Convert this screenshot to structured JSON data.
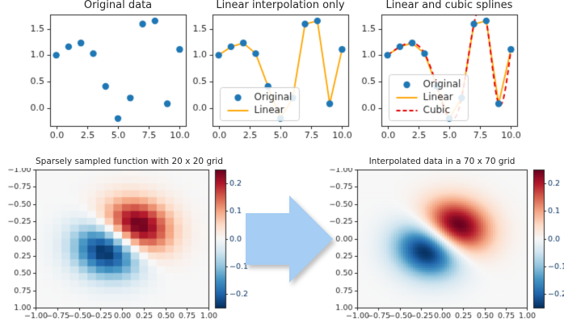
{
  "figure": {
    "background": "#ffffff"
  },
  "colors": {
    "scatter": "#1f77b4",
    "linear": "#ffa500",
    "cubic": "#e60000",
    "axis": "#262626",
    "legend_border": "#cccccc",
    "legend_bg": "rgba(255,255,255,0.85)",
    "arrow": "#a6cdf3",
    "colormap_stops": [
      "#053061",
      "#2166ac",
      "#4393c3",
      "#92c5de",
      "#d1e5f0",
      "#f7f7f7",
      "#fddbc7",
      "#f4a582",
      "#d6604d",
      "#b2182b",
      "#67001f"
    ]
  },
  "chart_data": [
    {
      "id": "original",
      "type": "scatter",
      "title": "Original data",
      "x": [
        0,
        1,
        2,
        3,
        4,
        5,
        6,
        7,
        8,
        9,
        10
      ],
      "y": [
        1.0,
        1.16,
        1.23,
        1.03,
        0.41,
        -0.2,
        0.19,
        1.59,
        1.65,
        0.08,
        1.11
      ],
      "xlim": [
        -0.5,
        10.5
      ],
      "ylim": [
        -0.34,
        1.77
      ],
      "xticks": [
        0,
        2.5,
        5,
        7.5,
        10
      ],
      "xtick_labels": [
        "0.0",
        "2.5",
        "5.0",
        "7.5",
        "10.0"
      ],
      "yticks": [
        0,
        0.5,
        1,
        1.5
      ],
      "ytick_labels": [
        "0.0",
        "0.5",
        "1.0",
        "1.5"
      ],
      "show_linear": false,
      "show_cubic": false
    },
    {
      "id": "linear-only",
      "type": "line",
      "title": "Linear interpolation only",
      "x": [
        0,
        1,
        2,
        3,
        4,
        5,
        6,
        7,
        8,
        9,
        10
      ],
      "y": [
        1.0,
        1.16,
        1.23,
        1.03,
        0.41,
        -0.2,
        0.19,
        1.59,
        1.65,
        0.08,
        1.11
      ],
      "xlim": [
        -0.5,
        10.5
      ],
      "ylim": [
        -0.34,
        1.77
      ],
      "xticks": [
        0,
        2.5,
        5,
        7.5,
        10
      ],
      "xtick_labels": [
        "0.0",
        "2.5",
        "5.0",
        "7.5",
        "10.0"
      ],
      "yticks": [
        0,
        0.5,
        1,
        1.5
      ],
      "ytick_labels": [
        "0.0",
        "0.5",
        "1.0",
        "1.5"
      ],
      "show_linear": true,
      "show_cubic": false,
      "legend": {
        "position": "lower left",
        "entries": [
          {
            "label": "Original",
            "style": "marker",
            "color": "#1f77b4"
          },
          {
            "label": "Linear",
            "style": "line",
            "color": "#ffa500"
          }
        ]
      }
    },
    {
      "id": "linear-cubic",
      "type": "line",
      "title": "Linear and cubic splines",
      "x": [
        0,
        1,
        2,
        3,
        4,
        5,
        6,
        7,
        8,
        9,
        10
      ],
      "y": [
        1.0,
        1.16,
        1.23,
        1.03,
        0.41,
        -0.2,
        0.19,
        1.59,
        1.65,
        0.08,
        1.11
      ],
      "xlim": [
        -0.5,
        10.5
      ],
      "ylim": [
        -0.34,
        1.77
      ],
      "xticks": [
        0,
        2.5,
        5,
        7.5,
        10
      ],
      "xtick_labels": [
        "0.0",
        "2.5",
        "5.0",
        "7.5",
        "10.0"
      ],
      "yticks": [
        0,
        0.5,
        1,
        1.5
      ],
      "ytick_labels": [
        "0.0",
        "0.5",
        "1.0",
        "1.5"
      ],
      "show_linear": true,
      "show_cubic": true,
      "legend": {
        "position": "lower left",
        "entries": [
          {
            "label": "Original",
            "style": "marker",
            "color": "#1f77b4"
          },
          {
            "label": "Linear",
            "style": "line",
            "color": "#ffa500"
          },
          {
            "label": "Cubic",
            "style": "dashed",
            "color": "#e60000"
          }
        ]
      }
    },
    {
      "id": "sparse-grid",
      "type": "heatmap",
      "title": "Sparsely sampled function with 20 x 20 grid",
      "grid": 20,
      "formula": "z = (x + y) * exp(-6*(x^2 + y^2))",
      "formula_js": "(x+y)*Math.exp(-6*(x*x+y*y))",
      "xlim": [
        -1,
        1
      ],
      "ylim": [
        -1,
        1
      ],
      "tick_values": [
        -1,
        -0.75,
        -0.5,
        -0.25,
        0,
        0.25,
        0.5,
        0.75,
        1
      ],
      "tick_labels": [
        "−1.00",
        "−0.75",
        "−0.50",
        "−0.25",
        "0.00",
        "0.25",
        "0.50",
        "0.75",
        "1.00"
      ],
      "vmin": -0.25,
      "vmax": 0.25,
      "colormap": "RdBu_r",
      "colorbar_tick_values": [
        0.2,
        0.1,
        0,
        -0.1,
        -0.2
      ],
      "colorbar_tick_labels": [
        "0.2",
        "0.1",
        "0.0",
        "−0.1",
        "−0.2"
      ]
    },
    {
      "id": "interp-grid",
      "type": "heatmap",
      "title": "Interpolated data in a 70 x 70 grid",
      "grid": 70,
      "formula": "z = (x + y) * exp(-6*(x^2 + y^2))",
      "formula_js": "(x+y)*Math.exp(-6*(x*x+y*y))",
      "xlim": [
        -1,
        1
      ],
      "ylim": [
        -1,
        1
      ],
      "tick_values": [
        -1,
        -0.75,
        -0.5,
        -0.25,
        0,
        0.25,
        0.5,
        0.75,
        1
      ],
      "tick_labels": [
        "−1.00",
        "−0.75",
        "−0.50",
        "−0.25",
        "0.00",
        "0.25",
        "0.50",
        "0.75",
        "1.00"
      ],
      "vmin": -0.25,
      "vmax": 0.25,
      "colormap": "RdBu_r",
      "colorbar_tick_values": [
        0.2,
        0.1,
        0,
        -0.1,
        -0.2
      ],
      "colorbar_tick_labels": [
        "0.2",
        "0.1",
        "0.0",
        "−0.1",
        "−0.2"
      ]
    }
  ],
  "arrow": {
    "direction": "right"
  }
}
